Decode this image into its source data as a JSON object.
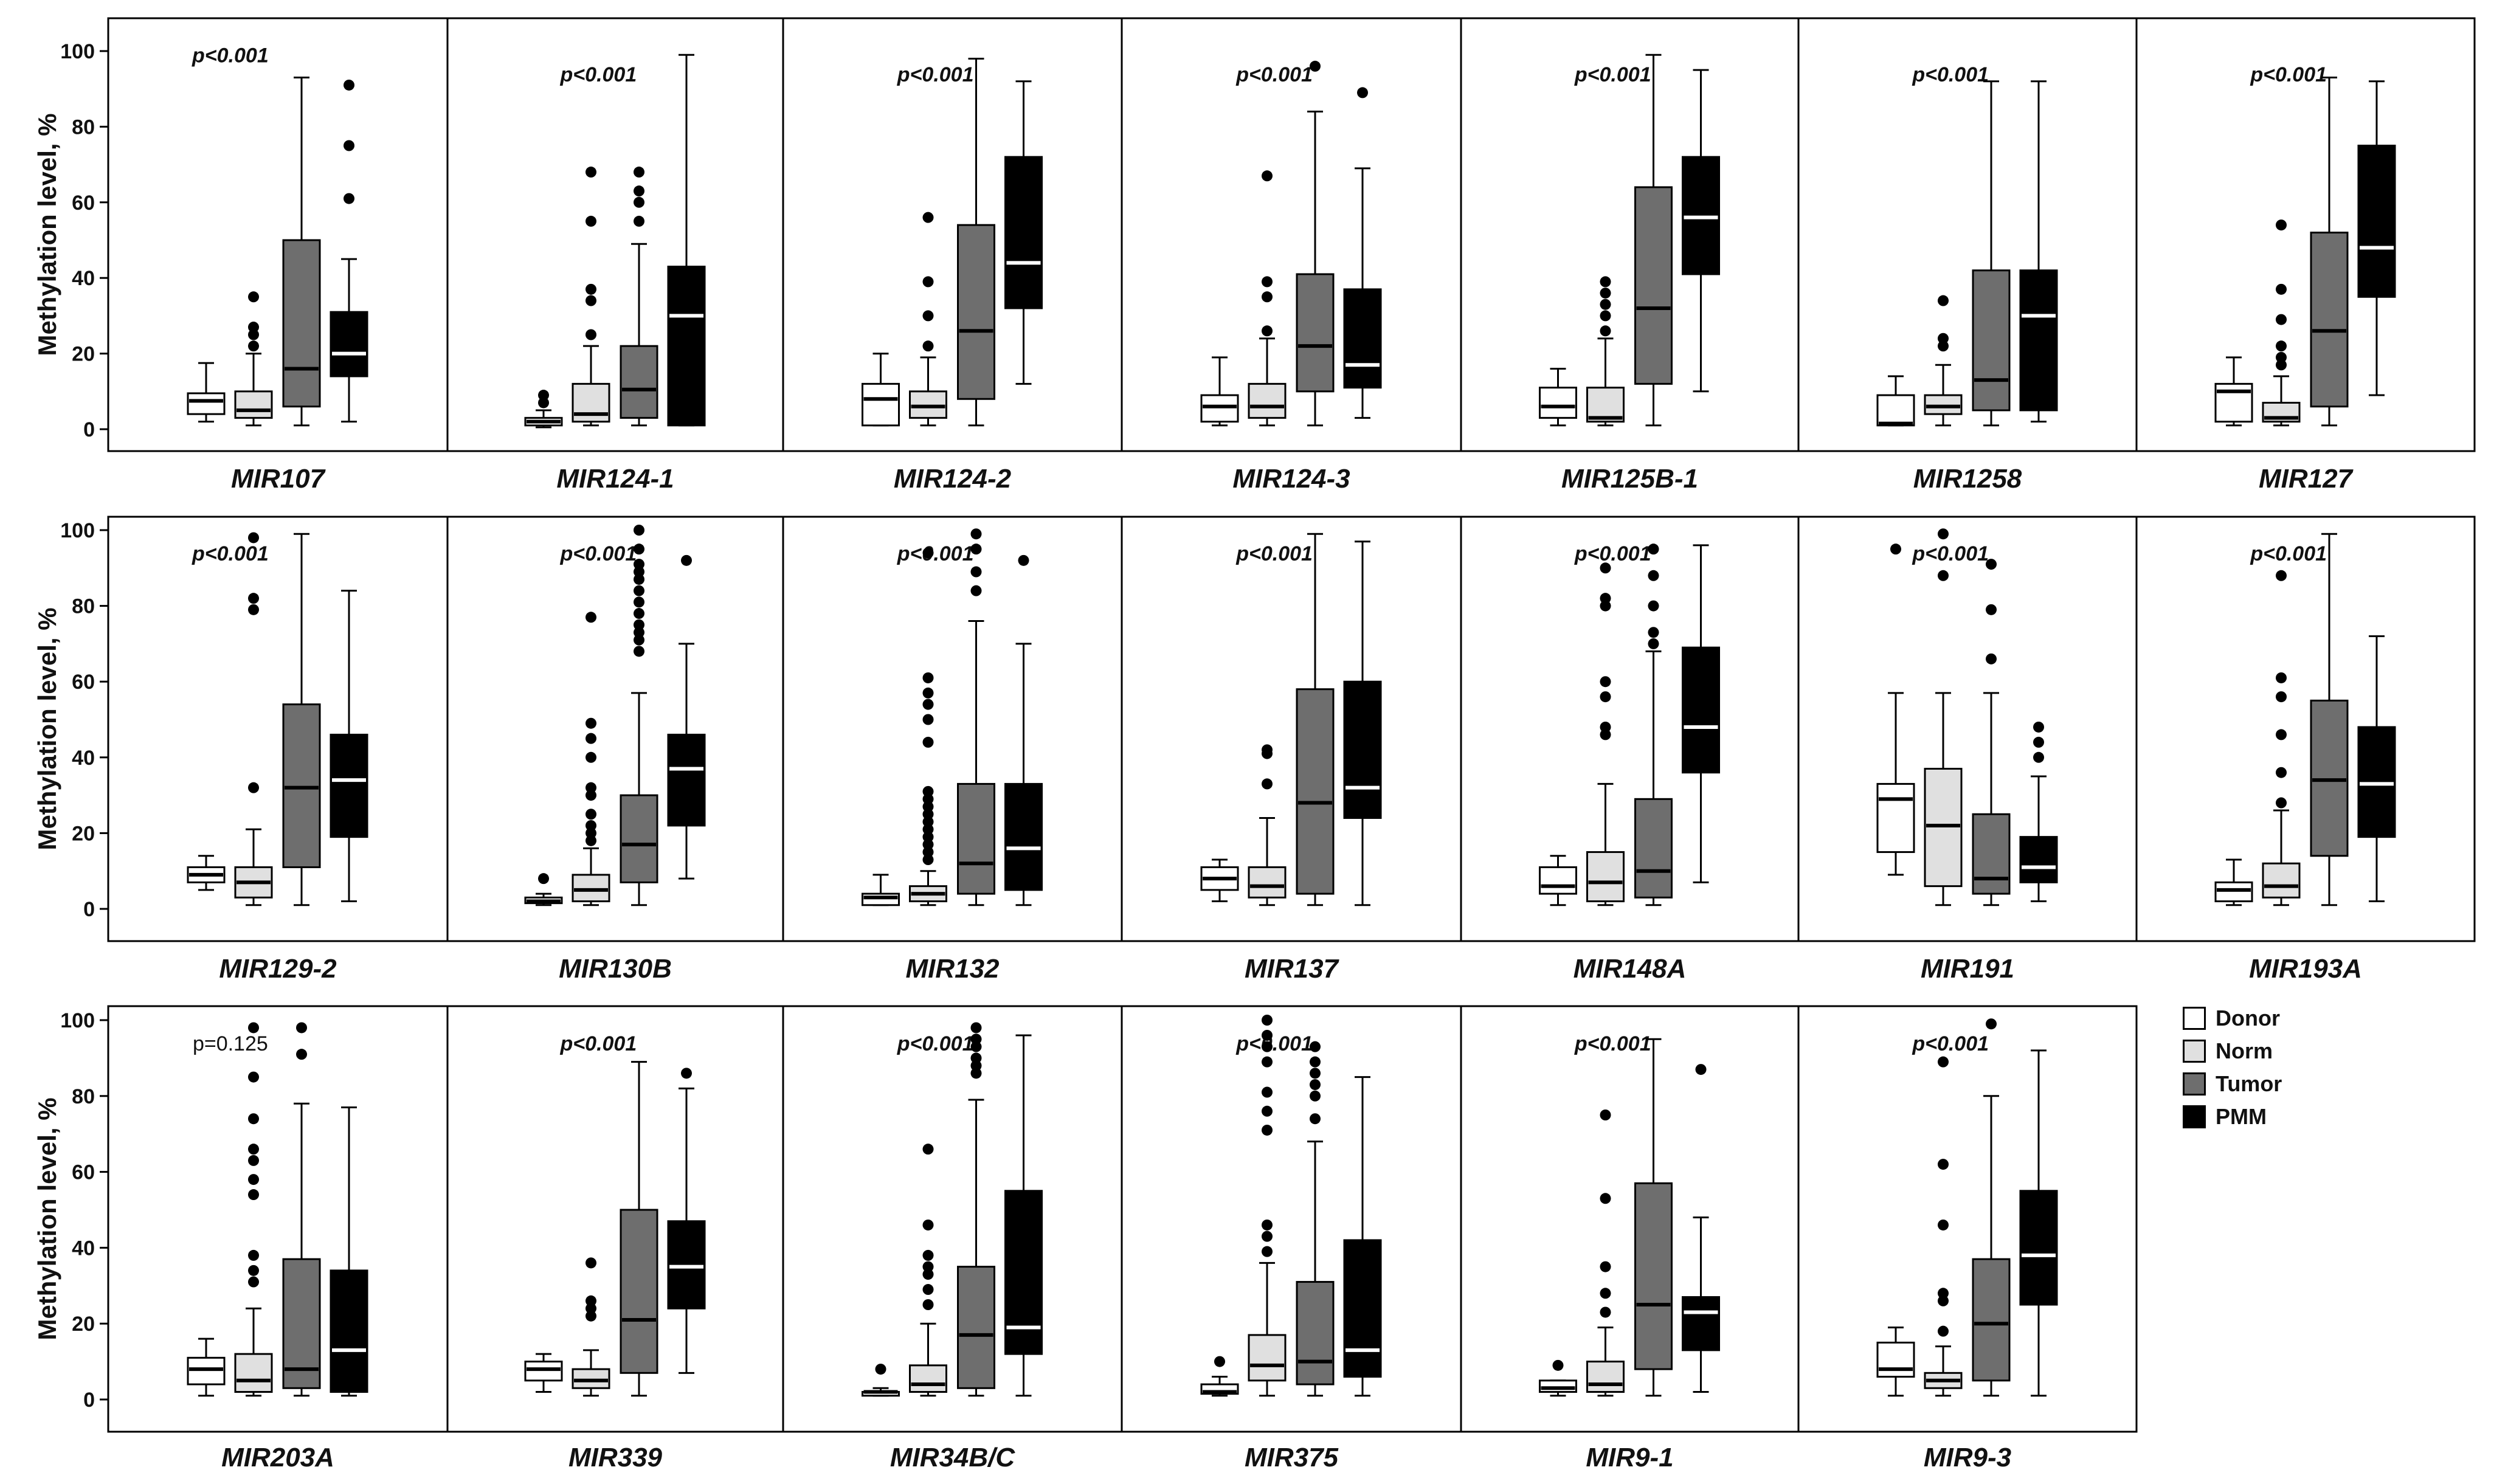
{
  "chart_data": {
    "type": "box",
    "ylabel": "Methylation level, %",
    "ylim": [
      0,
      100
    ],
    "yticks": [
      0,
      20,
      40,
      60,
      80,
      100
    ],
    "series_names": [
      "Donor",
      "Norm",
      "Tumor",
      "PMM"
    ],
    "colors": {
      "Donor": "#ffffff",
      "Norm": "#e0e0e0",
      "Tumor": "#6e6e6e",
      "PMM": "#000000"
    },
    "stat_labels": {
      "sig": "p<0.001",
      "p125": "p=0.125"
    },
    "panels": [
      {
        "gene": "MIR107",
        "pvalue_key": "sig",
        "groups": [
          {
            "min": 2,
            "q1": 4,
            "median": 7.5,
            "q3": 9.5,
            "max": 17.5,
            "outliers": []
          },
          {
            "min": 1,
            "q1": 3,
            "median": 5,
            "q3": 10,
            "max": 20,
            "outliers": [
              22,
              25,
              27,
              35
            ]
          },
          {
            "min": 1,
            "q1": 6,
            "median": 16,
            "q3": 50,
            "max": 93,
            "outliers": []
          },
          {
            "min": 2,
            "q1": 14,
            "median": 20,
            "q3": 31,
            "max": 45,
            "outliers": [
              61,
              75,
              91
            ]
          }
        ]
      },
      {
        "gene": "MIR124-1",
        "pvalue_key": "sig",
        "groups": [
          {
            "min": 0.5,
            "q1": 1,
            "median": 2,
            "q3": 3,
            "max": 5,
            "outliers": [
              7,
              9
            ]
          },
          {
            "min": 1,
            "q1": 2,
            "median": 4,
            "q3": 12,
            "max": 22,
            "outliers": [
              25,
              34,
              37,
              55,
              68
            ]
          },
          {
            "min": 1,
            "q1": 3,
            "median": 10.5,
            "q3": 22,
            "max": 49,
            "outliers": [
              55,
              60,
              63,
              68
            ]
          },
          {
            "min": 1,
            "q1": 1,
            "median": 30,
            "q3": 43,
            "max": 99,
            "outliers": []
          }
        ]
      },
      {
        "gene": "MIR124-2",
        "pvalue_key": "sig",
        "groups": [
          {
            "min": 1,
            "q1": 1,
            "median": 8,
            "q3": 12,
            "max": 20,
            "outliers": []
          },
          {
            "min": 1,
            "q1": 3,
            "median": 6,
            "q3": 10,
            "max": 19,
            "outliers": [
              22,
              30,
              39,
              56
            ]
          },
          {
            "min": 1,
            "q1": 8,
            "median": 26,
            "q3": 54,
            "max": 98,
            "outliers": []
          },
          {
            "min": 12,
            "q1": 32,
            "median": 44,
            "q3": 72,
            "max": 92,
            "outliers": []
          }
        ]
      },
      {
        "gene": "MIR124-3",
        "pvalue_key": "sig",
        "groups": [
          {
            "min": 1,
            "q1": 2,
            "median": 6,
            "q3": 9,
            "max": 19,
            "outliers": []
          },
          {
            "min": 1,
            "q1": 3,
            "median": 6,
            "q3": 12,
            "max": 24,
            "outliers": [
              26,
              35,
              39,
              67
            ]
          },
          {
            "min": 1,
            "q1": 10,
            "median": 22,
            "q3": 41,
            "max": 84,
            "outliers": [
              96
            ]
          },
          {
            "min": 3,
            "q1": 11,
            "median": 17,
            "q3": 37,
            "max": 69,
            "outliers": [
              89
            ]
          }
        ]
      },
      {
        "gene": "MIR125B-1",
        "pvalue_key": "sig",
        "groups": [
          {
            "min": 1,
            "q1": 3,
            "median": 6,
            "q3": 11,
            "max": 16,
            "outliers": []
          },
          {
            "min": 1,
            "q1": 2,
            "median": 3,
            "q3": 11,
            "max": 24,
            "outliers": [
              26,
              30,
              33,
              36,
              39
            ]
          },
          {
            "min": 1,
            "q1": 12,
            "median": 32,
            "q3": 64,
            "max": 99,
            "outliers": []
          },
          {
            "min": 10,
            "q1": 41,
            "median": 56,
            "q3": 72,
            "max": 95,
            "outliers": []
          }
        ]
      },
      {
        "gene": "MIR1258",
        "pvalue_key": "sig",
        "groups": [
          {
            "min": 1,
            "q1": 1,
            "median": 1.5,
            "q3": 9,
            "max": 14,
            "outliers": []
          },
          {
            "min": 1,
            "q1": 4,
            "median": 6,
            "q3": 9,
            "max": 17,
            "outliers": [
              22,
              24,
              34
            ]
          },
          {
            "min": 1,
            "q1": 5,
            "median": 13,
            "q3": 42,
            "max": 92,
            "outliers": []
          },
          {
            "min": 2,
            "q1": 5,
            "median": 30,
            "q3": 42,
            "max": 92,
            "outliers": []
          }
        ]
      },
      {
        "gene": "MIR127",
        "pvalue_key": "sig",
        "groups": [
          {
            "min": 1,
            "q1": 2,
            "median": 10,
            "q3": 12,
            "max": 19,
            "outliers": []
          },
          {
            "min": 1,
            "q1": 2,
            "median": 3,
            "q3": 7,
            "max": 14,
            "outliers": [
              17,
              19,
              22,
              29,
              37,
              54
            ]
          },
          {
            "min": 1,
            "q1": 6,
            "median": 26,
            "q3": 52,
            "max": 93,
            "outliers": []
          },
          {
            "min": 9,
            "q1": 35,
            "median": 48,
            "q3": 75,
            "max": 92,
            "outliers": []
          }
        ]
      },
      {
        "gene": "MIR129-2",
        "pvalue_key": "sig",
        "groups": [
          {
            "min": 5,
            "q1": 7,
            "median": 9,
            "q3": 11,
            "max": 14,
            "outliers": []
          },
          {
            "min": 1,
            "q1": 3,
            "median": 7,
            "q3": 11,
            "max": 21,
            "outliers": [
              32,
              79,
              82,
              98
            ]
          },
          {
            "min": 1,
            "q1": 11,
            "median": 32,
            "q3": 54,
            "max": 99,
            "outliers": []
          },
          {
            "min": 2,
            "q1": 19,
            "median": 34,
            "q3": 46,
            "max": 84,
            "outliers": []
          }
        ]
      },
      {
        "gene": "MIR130B",
        "pvalue_key": "sig",
        "groups": [
          {
            "min": 1,
            "q1": 1.5,
            "median": 2,
            "q3": 3,
            "max": 4,
            "outliers": [
              8
            ]
          },
          {
            "min": 1,
            "q1": 2,
            "median": 5,
            "q3": 9,
            "max": 16,
            "outliers": [
              18,
              20,
              22,
              25,
              30,
              32,
              40,
              45,
              49,
              77
            ]
          },
          {
            "min": 1,
            "q1": 7,
            "median": 17,
            "q3": 30,
            "max": 57,
            "outliers": [
              68,
              71,
              73,
              75,
              78,
              81,
              84,
              87,
              89,
              91,
              95,
              100
            ]
          },
          {
            "min": 8,
            "q1": 22,
            "median": 37,
            "q3": 46,
            "max": 70,
            "outliers": [
              92
            ]
          }
        ]
      },
      {
        "gene": "MIR132",
        "pvalue_key": "sig",
        "groups": [
          {
            "min": 1,
            "q1": 1,
            "median": 3,
            "q3": 4,
            "max": 9,
            "outliers": []
          },
          {
            "min": 1,
            "q1": 2,
            "median": 4,
            "q3": 6,
            "max": 10,
            "outliers": [
              13,
              15,
              17,
              19,
              21,
              23,
              25,
              27,
              29,
              31,
              44,
              50,
              54,
              57,
              61,
              94
            ]
          },
          {
            "min": 1,
            "q1": 4,
            "median": 12,
            "q3": 33,
            "max": 76,
            "outliers": [
              84,
              89,
              95,
              99
            ]
          },
          {
            "min": 1,
            "q1": 5,
            "median": 16,
            "q3": 33,
            "max": 70,
            "outliers": [
              92
            ]
          }
        ]
      },
      {
        "gene": "MIR137",
        "pvalue_key": "sig",
        "groups": [
          {
            "min": 2,
            "q1": 5,
            "median": 8,
            "q3": 11,
            "max": 13,
            "outliers": []
          },
          {
            "min": 1,
            "q1": 3,
            "median": 6,
            "q3": 11,
            "max": 24,
            "outliers": [
              33,
              41,
              42
            ]
          },
          {
            "min": 1,
            "q1": 4,
            "median": 28,
            "q3": 58,
            "max": 99,
            "outliers": []
          },
          {
            "min": 1,
            "q1": 24,
            "median": 32,
            "q3": 60,
            "max": 97,
            "outliers": []
          }
        ]
      },
      {
        "gene": "MIR148A",
        "pvalue_key": "sig",
        "groups": [
          {
            "min": 1,
            "q1": 4,
            "median": 6,
            "q3": 11,
            "max": 14,
            "outliers": []
          },
          {
            "min": 1,
            "q1": 2,
            "median": 7,
            "q3": 15,
            "max": 33,
            "outliers": [
              46,
              48,
              56,
              60,
              80,
              82,
              90
            ]
          },
          {
            "min": 1,
            "q1": 3,
            "median": 10,
            "q3": 29,
            "max": 68,
            "outliers": [
              70,
              73,
              80,
              88,
              95
            ]
          },
          {
            "min": 7,
            "q1": 36,
            "median": 48,
            "q3": 69,
            "max": 96,
            "outliers": []
          }
        ]
      },
      {
        "gene": "MIR191",
        "pvalue_key": "sig",
        "groups": [
          {
            "min": 9,
            "q1": 15,
            "median": 29,
            "q3": 33,
            "max": 57,
            "outliers": [
              95
            ]
          },
          {
            "min": 1,
            "q1": 6,
            "median": 22,
            "q3": 37,
            "max": 57,
            "outliers": [
              88,
              99
            ]
          },
          {
            "min": 1,
            "q1": 4,
            "median": 8,
            "q3": 25,
            "max": 57,
            "outliers": [
              66,
              79,
              91
            ]
          },
          {
            "min": 2,
            "q1": 7,
            "median": 11,
            "q3": 19,
            "max": 35,
            "outliers": [
              40,
              44,
              48
            ]
          }
        ]
      },
      {
        "gene": "MIR193A",
        "pvalue_key": "sig",
        "groups": [
          {
            "min": 1,
            "q1": 2,
            "median": 5,
            "q3": 7,
            "max": 13,
            "outliers": []
          },
          {
            "min": 1,
            "q1": 3,
            "median": 6,
            "q3": 12,
            "max": 26,
            "outliers": [
              28,
              36,
              46,
              56,
              61,
              88
            ]
          },
          {
            "min": 1,
            "q1": 14,
            "median": 34,
            "q3": 55,
            "max": 99,
            "outliers": []
          },
          {
            "min": 2,
            "q1": 19,
            "median": 33,
            "q3": 48,
            "max": 72,
            "outliers": []
          }
        ]
      },
      {
        "gene": "MIR203A",
        "pvalue_key": "p125",
        "groups": [
          {
            "min": 1,
            "q1": 4,
            "median": 8,
            "q3": 11,
            "max": 16,
            "outliers": []
          },
          {
            "min": 1,
            "q1": 2,
            "median": 5,
            "q3": 12,
            "max": 24,
            "outliers": [
              31,
              34,
              38,
              54,
              58,
              63,
              66,
              74,
              85,
              98
            ]
          },
          {
            "min": 1,
            "q1": 3,
            "median": 8,
            "q3": 37,
            "max": 78,
            "outliers": [
              91,
              98
            ]
          },
          {
            "min": 1,
            "q1": 2,
            "median": 13,
            "q3": 34,
            "max": 77,
            "outliers": []
          }
        ]
      },
      {
        "gene": "MIR339",
        "pvalue_key": "sig",
        "groups": [
          {
            "min": 2,
            "q1": 5,
            "median": 8,
            "q3": 10,
            "max": 12,
            "outliers": []
          },
          {
            "min": 1,
            "q1": 3,
            "median": 5,
            "q3": 8,
            "max": 13,
            "outliers": [
              22,
              24,
              26,
              36
            ]
          },
          {
            "min": 1,
            "q1": 7,
            "median": 21,
            "q3": 50,
            "max": 89,
            "outliers": []
          },
          {
            "min": 7,
            "q1": 24,
            "median": 35,
            "q3": 47,
            "max": 82,
            "outliers": [
              86
            ]
          }
        ]
      },
      {
        "gene": "MIR34B/C",
        "pvalue_key": "sig",
        "groups": [
          {
            "min": 1,
            "q1": 1,
            "median": 2,
            "q3": 2,
            "max": 3,
            "outliers": [
              8
            ]
          },
          {
            "min": 1,
            "q1": 2,
            "median": 4,
            "q3": 9,
            "max": 20,
            "outliers": [
              25,
              29,
              33,
              35,
              38,
              46,
              66
            ]
          },
          {
            "min": 1,
            "q1": 3,
            "median": 17,
            "q3": 35,
            "max": 79,
            "outliers": [
              86,
              88,
              90,
              93,
              95,
              98
            ]
          },
          {
            "min": 1,
            "q1": 12,
            "median": 19,
            "q3": 55,
            "max": 96,
            "outliers": []
          }
        ]
      },
      {
        "gene": "MIR375",
        "pvalue_key": "sig",
        "groups": [
          {
            "min": 1,
            "q1": 1.5,
            "median": 2,
            "q3": 4,
            "max": 6,
            "outliers": [
              10
            ]
          },
          {
            "min": 1,
            "q1": 5,
            "median": 9,
            "q3": 17,
            "max": 36,
            "outliers": [
              39,
              43,
              46,
              71,
              76,
              81,
              89,
              93,
              96,
              100
            ]
          },
          {
            "min": 1,
            "q1": 4,
            "median": 10,
            "q3": 31,
            "max": 68,
            "outliers": [
              74,
              80,
              83,
              86,
              89,
              93
            ]
          },
          {
            "min": 1,
            "q1": 6,
            "median": 13,
            "q3": 42,
            "max": 85,
            "outliers": []
          }
        ]
      },
      {
        "gene": "MIR9-1",
        "pvalue_key": "sig",
        "groups": [
          {
            "min": 1,
            "q1": 2,
            "median": 3,
            "q3": 5,
            "max": 5,
            "outliers": [
              9
            ]
          },
          {
            "min": 1,
            "q1": 2,
            "median": 4,
            "q3": 10,
            "max": 19,
            "outliers": [
              23,
              28,
              35,
              53,
              75
            ]
          },
          {
            "min": 1,
            "q1": 8,
            "median": 25,
            "q3": 57,
            "max": 95,
            "outliers": []
          },
          {
            "min": 2,
            "q1": 13,
            "median": 23,
            "q3": 27,
            "max": 48,
            "outliers": [
              87
            ]
          }
        ]
      },
      {
        "gene": "MIR9-3",
        "pvalue_key": "sig",
        "groups": [
          {
            "min": 1,
            "q1": 6,
            "median": 8,
            "q3": 15,
            "max": 19,
            "outliers": []
          },
          {
            "min": 1,
            "q1": 3,
            "median": 5,
            "q3": 7,
            "max": 14,
            "outliers": [
              18,
              26,
              28,
              46,
              62,
              89
            ]
          },
          {
            "min": 1,
            "q1": 5,
            "median": 20,
            "q3": 37,
            "max": 80,
            "outliers": [
              99
            ]
          },
          {
            "min": 1,
            "q1": 25,
            "median": 38,
            "q3": 55,
            "max": 92,
            "outliers": []
          }
        ]
      }
    ]
  }
}
